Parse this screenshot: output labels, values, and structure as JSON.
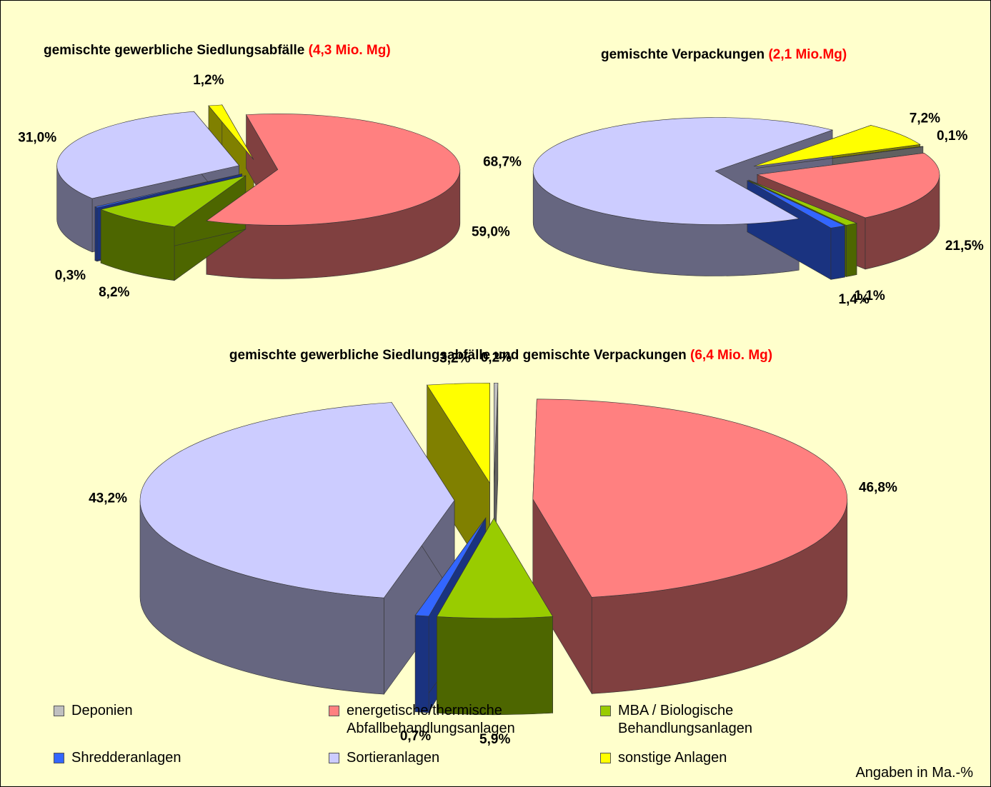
{
  "chart_data": [
    {
      "type": "pie3d",
      "title": "gemischte gewerbliche Siedlungsabfälle",
      "title_note": "(4,3 Mio. Mg)",
      "categories": [
        "energetische/thermische Abfallbehandlungsanlagen",
        "MBA / Biologische Behandlungsanlagen",
        "Shredderanlagen",
        "Sortieranlagen",
        "sonstige Anlagen"
      ],
      "values": [
        59.0,
        8.2,
        0.3,
        31.0,
        1.2
      ],
      "value_labels": [
        "59,0%",
        "8,2%",
        "0,3%",
        "31,0%",
        "1,2%"
      ],
      "colors": [
        "#ff8080",
        "#99cc00",
        "#3366ff",
        "#ccccff",
        "#ffff00"
      ]
    },
    {
      "type": "pie3d",
      "title": "gemischte Verpackungen",
      "title_note": "(2,1 Mio.Mg)",
      "categories": [
        "sonstige Anlagen",
        "Deponien",
        "energetische/thermische Abfallbehandlungsanlagen",
        "MBA / Biologische Behandlungsanlagen",
        "Shredderanlagen",
        "Sortieranlagen"
      ],
      "values": [
        7.2,
        0.1,
        21.5,
        1.1,
        1.4,
        68.7
      ],
      "value_labels": [
        "7,2%",
        "0,1%",
        "21,5%",
        "1,1%",
        "1,4%",
        "68,7%"
      ],
      "colors": [
        "#ffff00",
        "#c0c0c0",
        "#ff8080",
        "#99cc00",
        "#3366ff",
        "#ccccff"
      ]
    },
    {
      "type": "pie3d",
      "title": "gemischte gewerbliche Siedlungsabfälle und gemischte Verpackungen",
      "title_note": "(6,4 Mio. Mg)",
      "categories": [
        "Deponien",
        "energetische/thermische Abfallbehandlungsanlagen",
        "MBA / Biologische Behandlungsanlagen",
        "Shredderanlagen",
        "Sortieranlagen",
        "sonstige Anlagen"
      ],
      "values": [
        0.2,
        46.8,
        5.9,
        0.7,
        43.2,
        3.2
      ],
      "value_labels": [
        "0,2%",
        "46,8%",
        "5,9%",
        "0,7%",
        "43,2%",
        "3,2%"
      ],
      "colors": [
        "#c0c0c0",
        "#ff8080",
        "#99cc00",
        "#3366ff",
        "#ccccff",
        "#ffff00"
      ]
    }
  ],
  "legend": {
    "labels": [
      "Deponien",
      "energetische/thermische Abfallbehandlungsanlagen",
      "MBA / Biologische Behandlungsanlagen",
      "Shredderanlagen",
      "Sortieranlagen",
      "sonstige Anlagen"
    ],
    "colors": [
      "#c0c0c0",
      "#ff8080",
      "#99cc00",
      "#3366ff",
      "#ccccff",
      "#ffff00"
    ]
  },
  "note": "Angaben in Ma.-%"
}
